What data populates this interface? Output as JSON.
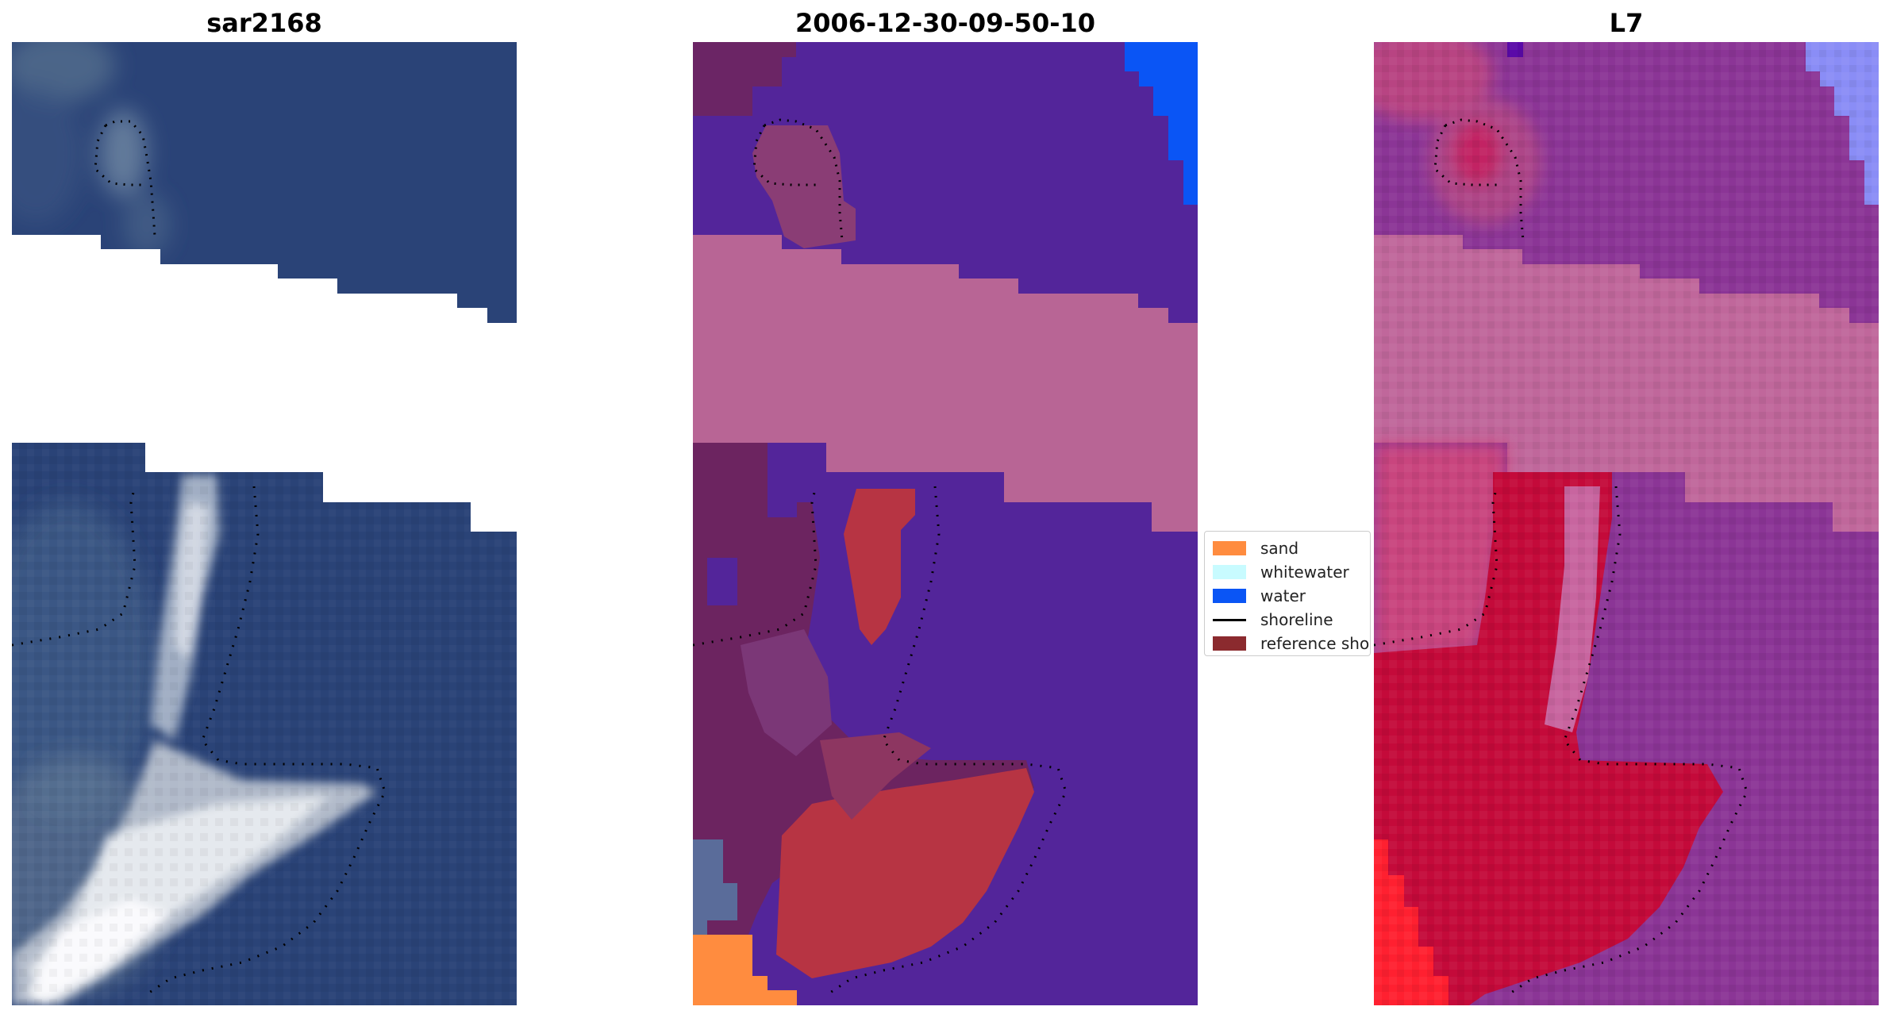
{
  "panels": [
    {
      "title": "sar2168"
    },
    {
      "title": "2006-12-30-09-50-10"
    },
    {
      "title": "L7"
    }
  ],
  "legend": {
    "items": [
      {
        "label": "sand",
        "color": "#ff8c3f",
        "kind": "patch"
      },
      {
        "label": "whitewater",
        "color": "#c8fbff",
        "kind": "patch"
      },
      {
        "label": "water",
        "color": "#0a55f5",
        "kind": "patch"
      },
      {
        "label": "shoreline",
        "color": "#000000",
        "kind": "line"
      },
      {
        "label": "reference sho",
        "color": "#8b2a2e",
        "kind": "patch"
      }
    ]
  },
  "colors": {
    "sea_rgb": "#2a4377",
    "sea_class": "#53259a",
    "cloud_class": "#b86595",
    "reference_class": "#b73443",
    "sea_ndwi": "#8b3596",
    "land_ndwi": "#c40a3a"
  }
}
